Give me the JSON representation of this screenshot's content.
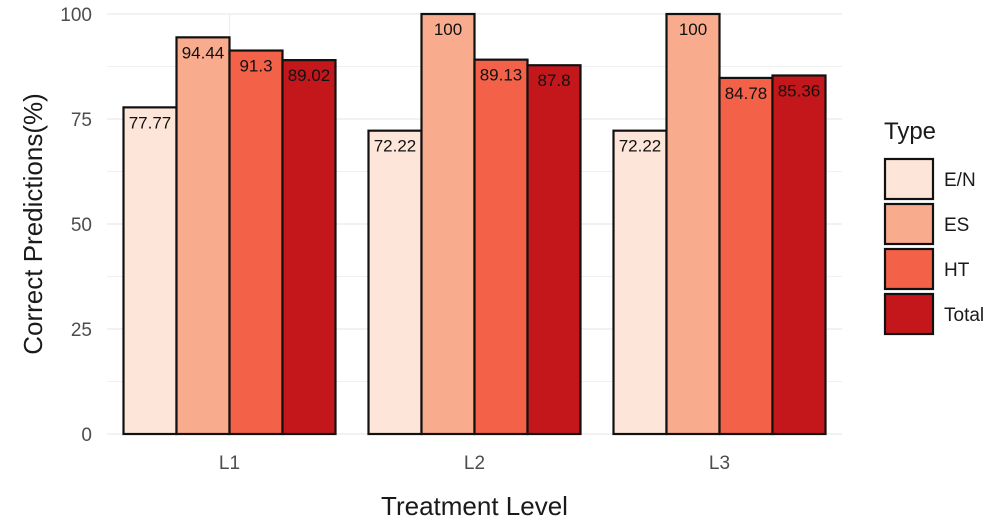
{
  "chart_data": {
    "type": "bar",
    "xlabel": "Treatment Level",
    "ylabel": "Correct Predictions(%)",
    "ylim": [
      0,
      100
    ],
    "yticks": [
      0,
      25,
      50,
      75,
      100
    ],
    "categories": [
      "L1",
      "L2",
      "L3"
    ],
    "series": [
      {
        "name": "E/N",
        "color": "#fde5d9",
        "values": [
          77.77,
          72.22,
          72.22
        ],
        "labels": [
          "77.77",
          "72.22",
          "72.22"
        ]
      },
      {
        "name": "ES",
        "color": "#f9ab8e",
        "values": [
          94.44,
          100,
          100
        ],
        "labels": [
          "94.44",
          "100",
          "100"
        ]
      },
      {
        "name": "HT",
        "color": "#f26148",
        "values": [
          91.3,
          89.13,
          84.78
        ],
        "labels": [
          "91.3",
          "89.13",
          "84.78"
        ]
      },
      {
        "name": "Total",
        "color": "#c3171c",
        "values": [
          89.02,
          87.8,
          85.36
        ],
        "labels": [
          "89.02",
          "87.8",
          "85.36"
        ]
      }
    ],
    "legend": {
      "title": "Type",
      "position": "right"
    },
    "grid": true
  }
}
